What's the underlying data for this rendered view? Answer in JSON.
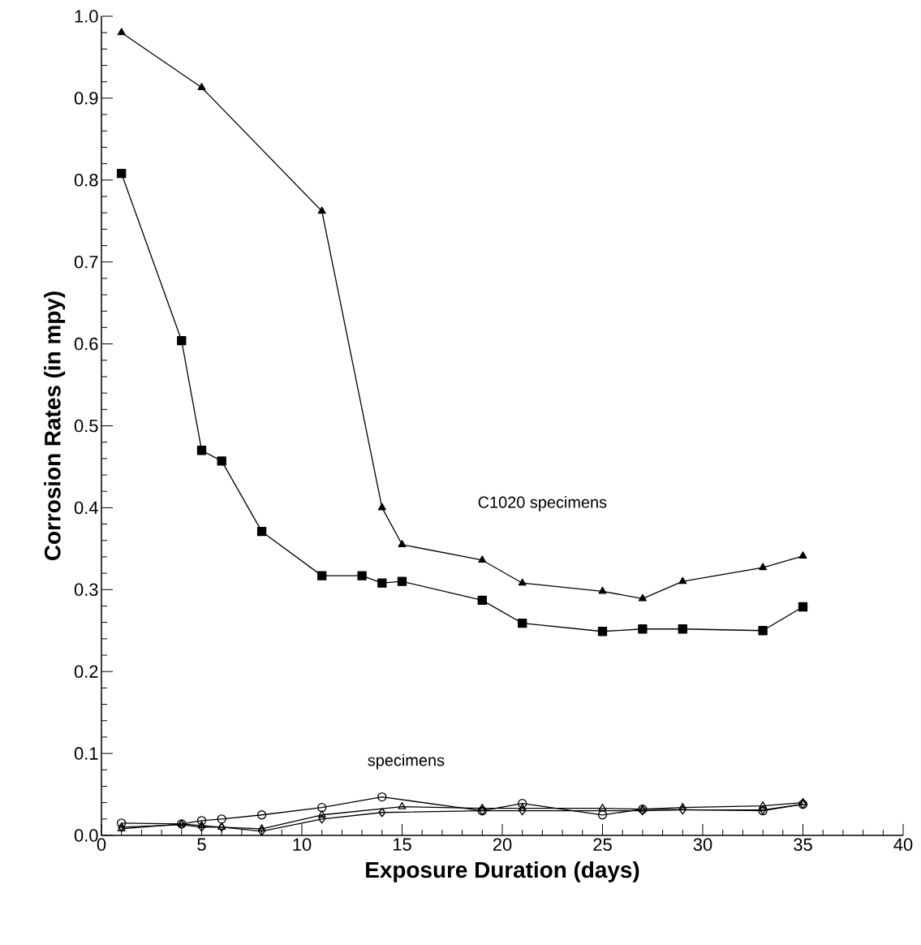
{
  "chart_data": {
    "type": "line",
    "xlabel": "Exposure Duration (days)",
    "ylabel": "Corrosion Rates (in mpy)",
    "xlim": [
      0,
      40
    ],
    "xticks": [
      0,
      5,
      10,
      15,
      20,
      25,
      30,
      35,
      40
    ],
    "ylim": [
      0,
      1.0
    ],
    "yticks": [
      {
        "value": 0,
        "label": "0.0"
      },
      {
        "value": 0.1,
        "label": "0.1"
      },
      {
        "value": 0.2,
        "label": "0.2"
      },
      {
        "value": 0.3,
        "label": "0.3"
      },
      {
        "value": 0.4,
        "label": "0.4"
      },
      {
        "value": 0.5,
        "label": "0.5"
      },
      {
        "value": 0.6,
        "label": "0.6"
      },
      {
        "value": 0.7,
        "label": "0.7"
      },
      {
        "value": 0.8,
        "label": "0.8"
      },
      {
        "value": 0.9,
        "label": "0.9"
      },
      {
        "value": 1.0,
        "label": "1.0"
      }
    ],
    "grid": false,
    "line_style": "solid",
    "series": [
      {
        "color": "#000000",
        "marker": "triangle",
        "x": [
          1,
          5,
          11,
          14,
          15,
          19,
          21,
          25,
          27,
          29,
          33,
          35
        ],
        "values": [
          0.98,
          0.913,
          0.762,
          0.4,
          0.355,
          0.336,
          0.308,
          0.298,
          0.289,
          0.31,
          0.327,
          0.341
        ]
      },
      {
        "color": "#000000",
        "marker": "square",
        "x": [
          1,
          4,
          5,
          6,
          8,
          11,
          13,
          14,
          15,
          19,
          21,
          25,
          27,
          29,
          33,
          35
        ],
        "values": [
          0.808,
          0.604,
          0.47,
          0.457,
          0.371,
          0.317,
          0.317,
          0.308,
          0.31,
          0.287,
          0.259,
          0.249,
          0.252,
          0.252,
          0.25,
          0.279
        ]
      },
      {
        "color": "#000000",
        "marker": "circle",
        "x": [
          1,
          4,
          5,
          6,
          8,
          11,
          14,
          19,
          21,
          25,
          27,
          33,
          35
        ],
        "values": [
          0.015,
          0.014,
          0.018,
          0.02,
          0.025,
          0.034,
          0.047,
          0.03,
          0.039,
          0.025,
          0.032,
          0.03,
          0.038
        ]
      },
      {
        "color": "#000000",
        "marker": "triangle_open",
        "x": [
          1,
          4,
          5,
          6,
          8,
          11,
          15,
          19,
          21,
          25,
          27,
          29,
          33,
          35
        ],
        "values": [
          0.008,
          0.014,
          0.012,
          0.01,
          0.008,
          0.025,
          0.035,
          0.033,
          0.033,
          0.033,
          0.032,
          0.034,
          0.036,
          0.04
        ]
      },
      {
        "color": "#000000",
        "marker": "diamond",
        "x": [
          1,
          4,
          5,
          6,
          8,
          11,
          14,
          19,
          21,
          27,
          29,
          33,
          35
        ],
        "values": [
          0.01,
          0.013,
          0.01,
          0.01,
          0.005,
          0.02,
          0.028,
          0.03,
          0.03,
          0.03,
          0.031,
          0.031,
          0.038
        ]
      }
    ],
    "annotations": [
      "C1020 specimens",
      "specimens"
    ]
  }
}
